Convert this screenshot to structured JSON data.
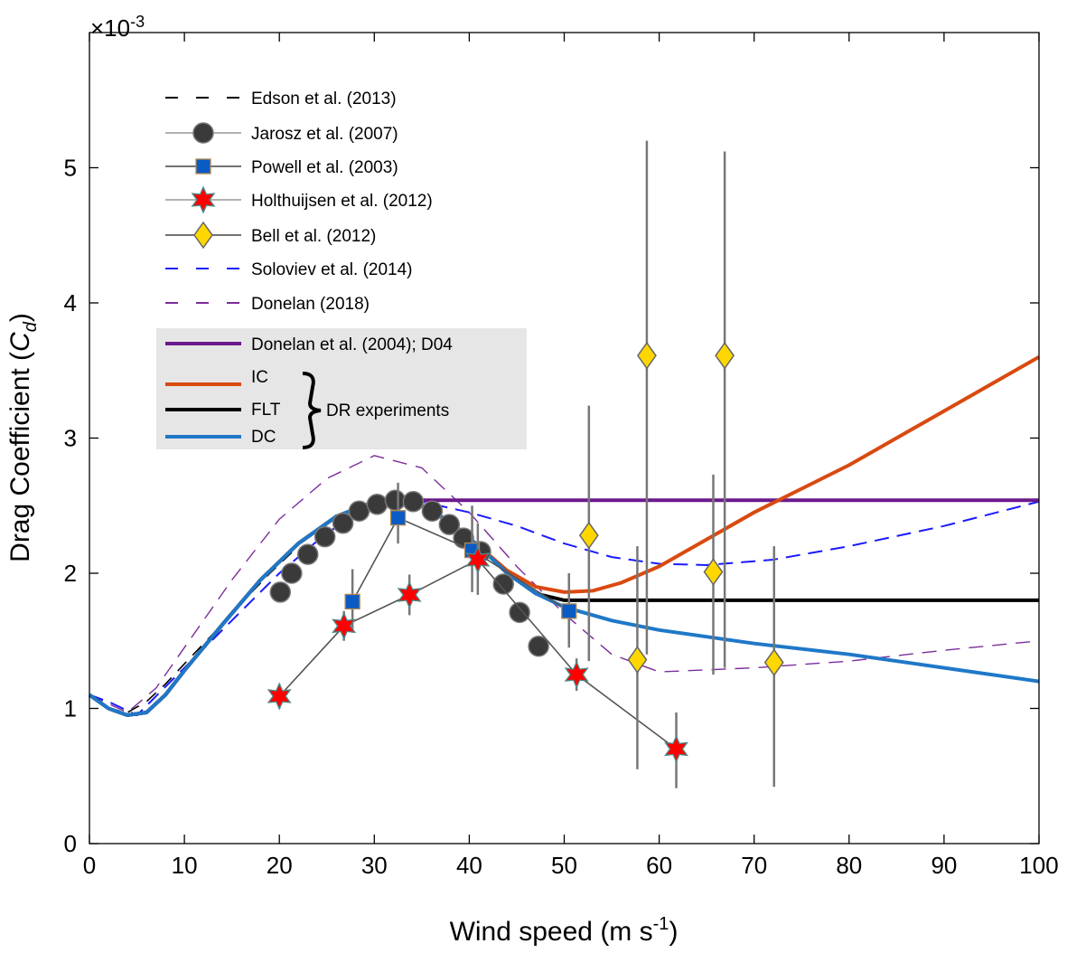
{
  "chart_data": {
    "type": "line",
    "title": "",
    "xlabel": "Wind speed (m s",
    "xlabel_sup": "-1",
    "xlabel_close": ")",
    "ylabel": "Drag Coefficient (",
    "ylabel_sym": "C",
    "ylabel_sub": "d",
    "ylabel_close": ")",
    "y_multiplier": "×10",
    "y_multiplier_exp": "-3",
    "xlim": [
      0,
      100
    ],
    "ylim": [
      0,
      6
    ],
    "xticks": [
      0,
      10,
      20,
      30,
      40,
      50,
      60,
      70,
      80,
      90,
      100
    ],
    "yticks": [
      0,
      1,
      2,
      3,
      4,
      5
    ],
    "legend_placement": "top-left",
    "bracket_label": "DR experiments",
    "series": [
      {
        "name": "Edson et al. (2013)",
        "kind": "line",
        "color": "#000000",
        "dash": "14,10",
        "width": 1.6,
        "x": [
          0,
          2,
          4,
          6,
          8,
          10,
          13,
          16,
          19,
          22
        ],
        "y": [
          1.1,
          1.0,
          0.97,
          1.05,
          1.18,
          1.33,
          1.55,
          1.78,
          2.0,
          2.2
        ]
      },
      {
        "name": "Jarosz et al. (2007)",
        "kind": "circle",
        "color": "#3a3a3a",
        "line": "#999999",
        "x": [
          20.1,
          21.3,
          23.0,
          24.8,
          26.7,
          28.4,
          30.3,
          32.2,
          34.1,
          36.1,
          37.9,
          39.4,
          41.2,
          43.6,
          45.3,
          47.3
        ],
        "y": [
          1.86,
          2.0,
          2.14,
          2.27,
          2.37,
          2.46,
          2.51,
          2.54,
          2.53,
          2.46,
          2.36,
          2.26,
          2.16,
          1.92,
          1.71,
          1.46
        ]
      },
      {
        "name": "Powell et al. (2003)",
        "kind": "square",
        "color": "#0a5bc4",
        "line": "#555555",
        "x": [
          27.7,
          32.5,
          40.3,
          50.5
        ],
        "y": [
          1.79,
          2.41,
          2.17,
          1.72
        ],
        "err_low": [
          1.56,
          2.22,
          1.86,
          1.45
        ],
        "err_high": [
          2.03,
          2.67,
          2.5,
          2.0
        ]
      },
      {
        "name": "Holthuijsen et al. (2012)",
        "kind": "star",
        "color": "#ff0000",
        "line": "#555555",
        "x": [
          20.0,
          26.8,
          33.7,
          40.9,
          51.3,
          61.8
        ],
        "y": [
          1.09,
          1.61,
          1.84,
          2.1,
          1.25,
          0.7
        ],
        "err_low": [
          1.0,
          1.5,
          1.69,
          1.84,
          1.13,
          0.41
        ],
        "err_high": [
          1.18,
          1.72,
          1.99,
          2.37,
          1.37,
          0.97
        ]
      },
      {
        "name": "Bell et al. (2012)",
        "kind": "diamond",
        "color": "#ffd700",
        "line": "#555555",
        "x": [
          52.6,
          57.7,
          58.7,
          65.7,
          66.9,
          72.1
        ],
        "y": [
          2.28,
          1.36,
          3.61,
          2.01,
          3.61,
          1.34
        ],
        "err_low": [
          1.35,
          0.55,
          1.4,
          1.25,
          1.3,
          0.42
        ],
        "err_high": [
          3.24,
          2.2,
          5.2,
          2.73,
          5.12,
          2.2
        ]
      },
      {
        "name": "Soloviev et al. (2014)",
        "kind": "line",
        "color": "#1a1aff",
        "dash": "16,9",
        "width": 2,
        "x": [
          0,
          2,
          5,
          10,
          15,
          20,
          25,
          30,
          35,
          40,
          45,
          50,
          55,
          60,
          65,
          72,
          80,
          90,
          100
        ],
        "y": [
          1.1,
          1.05,
          0.95,
          1.3,
          1.65,
          2.0,
          2.3,
          2.5,
          2.53,
          2.45,
          2.35,
          2.22,
          2.12,
          2.07,
          2.06,
          2.1,
          2.2,
          2.35,
          2.53
        ]
      },
      {
        "name": "Donelan (2018)",
        "kind": "line",
        "color": "#7b2d9b",
        "dash": "16,10",
        "width": 1.4,
        "x": [
          0,
          4,
          7,
          10,
          15,
          20,
          25,
          30,
          35,
          40,
          45,
          50,
          55,
          60,
          70,
          80,
          90,
          100
        ],
        "y": [
          1.1,
          0.97,
          1.15,
          1.45,
          1.95,
          2.4,
          2.7,
          2.87,
          2.78,
          2.45,
          2.05,
          1.7,
          1.4,
          1.27,
          1.3,
          1.35,
          1.43,
          1.5
        ]
      },
      {
        "name": "Donelan et al. (2004); D04",
        "kind": "line",
        "color": "#6a1a8c",
        "width": 4,
        "x": [
          0,
          2,
          4,
          6,
          8,
          10,
          14,
          18,
          22,
          26,
          30,
          33,
          100
        ],
        "y": [
          1.1,
          1.0,
          0.95,
          0.97,
          1.1,
          1.28,
          1.62,
          1.95,
          2.22,
          2.42,
          2.53,
          2.54,
          2.54
        ]
      },
      {
        "name": "IC",
        "kind": "line",
        "color": "#d94a10",
        "width": 4,
        "x": [
          0,
          2,
          4,
          6,
          8,
          10,
          14,
          18,
          22,
          26,
          30,
          32,
          35,
          38,
          41,
          44,
          47,
          50,
          53,
          56,
          60,
          65,
          70,
          80,
          90,
          100
        ],
        "y": [
          1.1,
          1.0,
          0.95,
          0.97,
          1.1,
          1.28,
          1.62,
          1.95,
          2.22,
          2.42,
          2.53,
          2.54,
          2.5,
          2.38,
          2.2,
          2.02,
          1.9,
          1.86,
          1.87,
          1.93,
          2.05,
          2.25,
          2.45,
          2.8,
          3.2,
          3.6
        ]
      },
      {
        "name": "FLT",
        "kind": "line",
        "color": "#000000",
        "width": 4,
        "x": [
          0,
          2,
          4,
          6,
          8,
          10,
          14,
          18,
          22,
          26,
          30,
          32,
          35,
          38,
          41,
          44,
          47,
          50,
          100
        ],
        "y": [
          1.1,
          1.0,
          0.95,
          0.97,
          1.1,
          1.28,
          1.62,
          1.95,
          2.22,
          2.42,
          2.53,
          2.54,
          2.5,
          2.38,
          2.2,
          2.0,
          1.85,
          1.8,
          1.8
        ]
      },
      {
        "name": "DC",
        "kind": "line",
        "color": "#1f78c8",
        "width": 4,
        "x": [
          0,
          2,
          4,
          6,
          8,
          10,
          14,
          18,
          22,
          26,
          30,
          32,
          35,
          38,
          41,
          44,
          47,
          50,
          55,
          60,
          70,
          80,
          90,
          100
        ],
        "y": [
          1.1,
          1.0,
          0.95,
          0.97,
          1.1,
          1.28,
          1.62,
          1.95,
          2.22,
          2.42,
          2.53,
          2.54,
          2.5,
          2.38,
          2.2,
          2.0,
          1.85,
          1.75,
          1.65,
          1.58,
          1.48,
          1.4,
          1.3,
          1.2
        ]
      }
    ]
  }
}
